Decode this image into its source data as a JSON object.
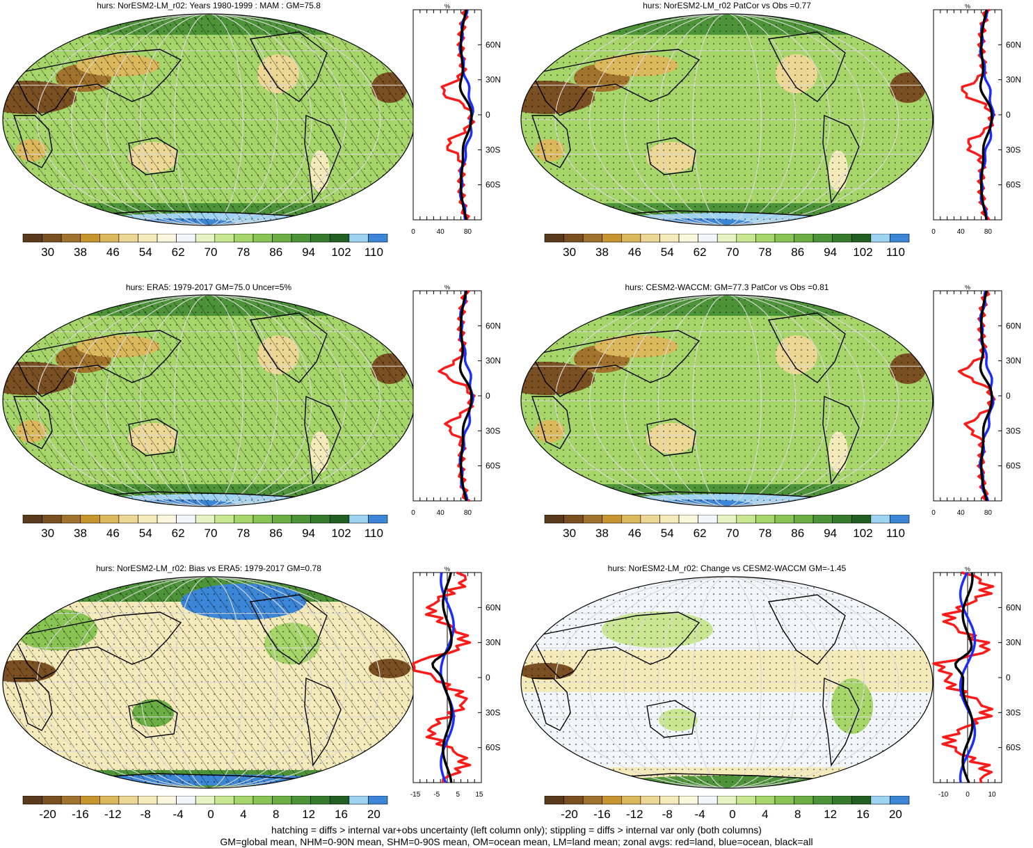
{
  "panels": [
    {
      "id": "p1",
      "title": "hurs: NorESM2-LM_r02: Years 1980-1999 : MAM : GM=75.8",
      "kind": "abs",
      "hatch": true,
      "stipple": true,
      "cbar": "abs",
      "zonal_ticks": [
        "0",
        "40",
        "80"
      ]
    },
    {
      "id": "p2",
      "title": "hurs: NorESM2-LM_r02 PatCor vs Obs =0.77",
      "kind": "abs",
      "hatch": false,
      "stipple": true,
      "cbar": "abs",
      "zonal_ticks": [
        "0",
        "40",
        "80"
      ]
    },
    {
      "id": "p3",
      "title": "hurs: ERA5: 1979-2017 GM=75.0 Uncer=5%",
      "kind": "abs",
      "hatch": true,
      "stipple": true,
      "cbar": "abs",
      "zonal_ticks": [
        "0",
        "40",
        "80"
      ]
    },
    {
      "id": "p4",
      "title": "hurs: CESM2-WACCM: GM=77.3 PatCor vs Obs =0.81",
      "kind": "abs",
      "hatch": false,
      "stipple": true,
      "cbar": "abs",
      "zonal_ticks": [
        "0",
        "40",
        "80"
      ]
    },
    {
      "id": "p5",
      "title": "hurs: NorESM2-LM_r02: Bias vs ERA5: 1979-2017 GM=0.78",
      "kind": "diff",
      "hatch": true,
      "stipple": true,
      "cbar": "diff",
      "zonal_ticks": [
        "-15",
        "-5",
        "5",
        "15"
      ]
    },
    {
      "id": "p6",
      "title": "hurs: NorESM2-LM_r02: Change vs CESM2-WACCM GM=-1.45",
      "kind": "diff",
      "hatch": false,
      "stipple": true,
      "cbar": "diff",
      "zonal_ticks": [
        "-10",
        "0",
        "10"
      ]
    }
  ],
  "zonal": {
    "unit": "%",
    "lat_labels": [
      "60N",
      "30N",
      "0",
      "30S",
      "60S"
    ]
  },
  "colorbars": {
    "abs": {
      "labels": [
        "30",
        "38",
        "46",
        "54",
        "62",
        "70",
        "78",
        "86",
        "94",
        "102",
        "110"
      ]
    },
    "diff": {
      "labels": [
        "-20",
        "-16",
        "-12",
        "-8",
        "-4",
        "0",
        "4",
        "8",
        "12",
        "16",
        "20"
      ]
    }
  },
  "palette": [
    "#5a3a1a",
    "#7a4f22",
    "#a1732c",
    "#c8962f",
    "#dcb85c",
    "#ecd794",
    "#f5eab9",
    "#fbf7df",
    "#f3f6fb",
    "#e6f3c3",
    "#c9e691",
    "#a6d66a",
    "#88c553",
    "#6aae44",
    "#4d9438",
    "#367a2d",
    "#245f22",
    "#9fd3f2",
    "#3b86d6"
  ],
  "line_colors": {
    "land": "#ff1a1a",
    "ocean": "#1a2fff",
    "all": "#000000"
  },
  "footer": {
    "line1": "hatching = diffs > internal var+obs uncertainty (left column only); stippling = diffs > internal var only (both columns)",
    "line2": "GM=global mean, NHM=0-90N mean, SHM=0-90S mean, OM=ocean mean, LM=land mean; zonal avgs: red=land, blue=ocean, black=all"
  }
}
